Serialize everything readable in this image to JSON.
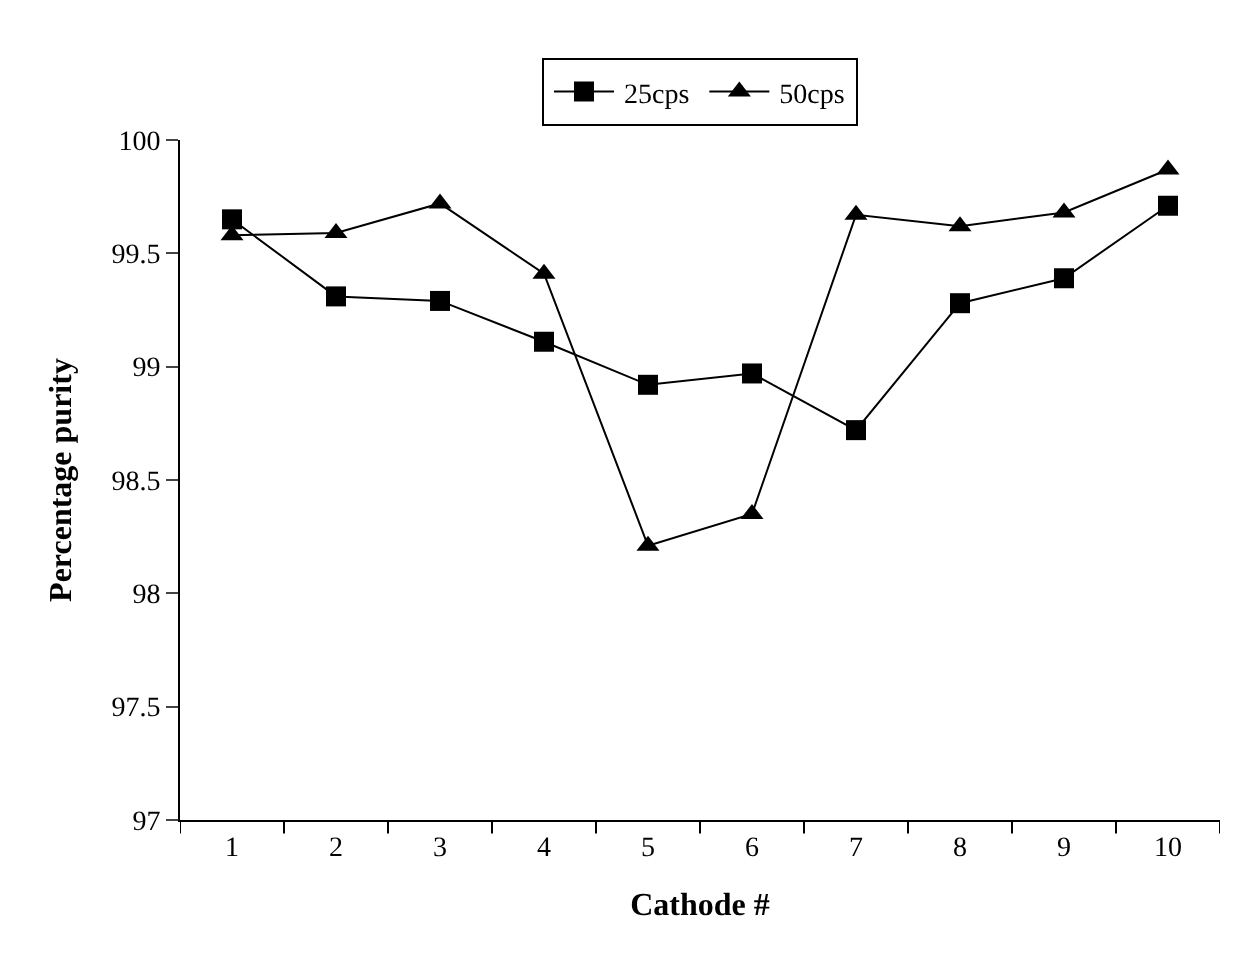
{
  "chart_data": {
    "type": "line",
    "xlabel": "Cathode #",
    "ylabel": "Percentage purity",
    "categories": [
      "1",
      "2",
      "3",
      "4",
      "5",
      "6",
      "7",
      "8",
      "9",
      "10"
    ],
    "series": [
      {
        "name": "25cps",
        "color": "#000000",
        "marker": "square",
        "values": [
          99.65,
          99.31,
          99.29,
          99.11,
          98.92,
          98.97,
          98.72,
          99.28,
          99.39,
          99.71
        ]
      },
      {
        "name": "50cps",
        "color": "#000000",
        "marker": "triangle",
        "values": [
          99.58,
          99.59,
          99.72,
          99.41,
          98.21,
          98.35,
          99.67,
          99.62,
          99.68,
          99.87
        ]
      }
    ],
    "ylim": [
      97,
      100
    ],
    "yticks": [
      97,
      97.5,
      98,
      98.5,
      99,
      99.5,
      100
    ],
    "legend": "top",
    "line_style": "solid"
  }
}
